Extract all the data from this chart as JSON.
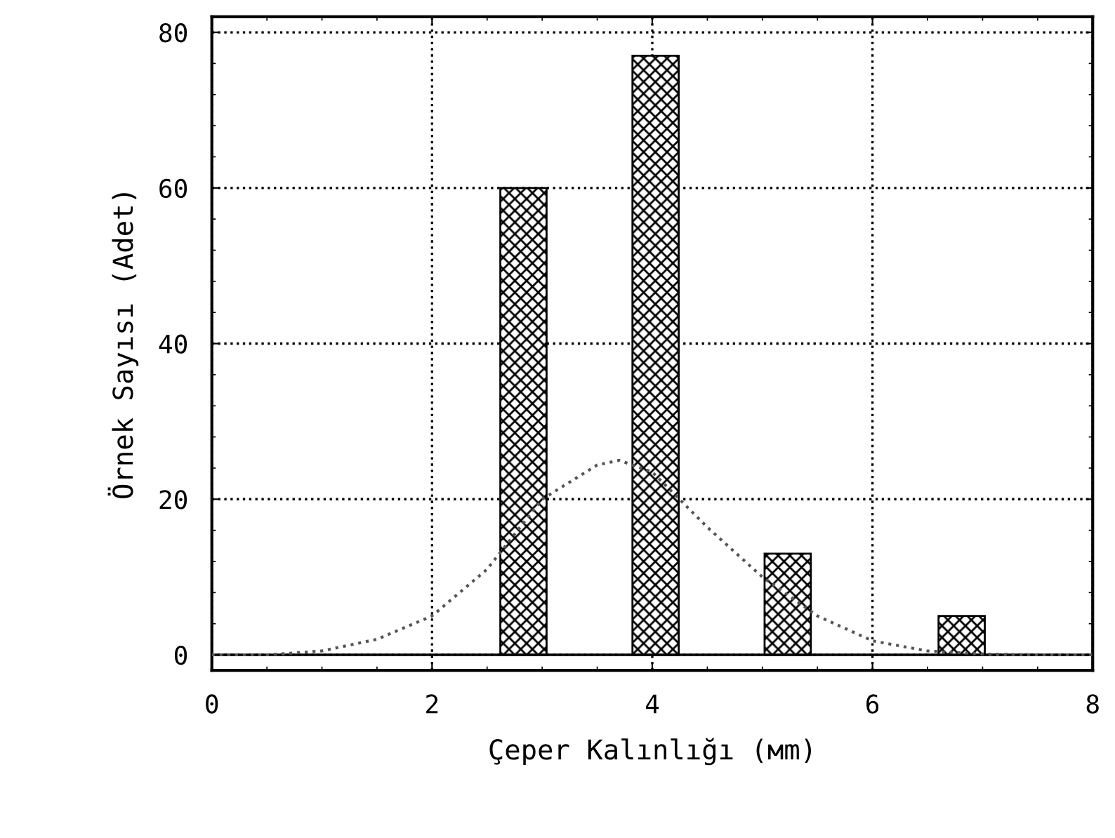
{
  "chart_data": {
    "type": "bar",
    "xlabel": "Çeper Kalınlığı (мm)",
    "ylabel": "Örnek Sayısı (Adet)",
    "xlim": [
      0,
      8
    ],
    "xticks": [
      0,
      2,
      4,
      6,
      8
    ],
    "ylim": [
      -2,
      82
    ],
    "yticks": [
      0,
      20,
      40,
      60,
      80
    ],
    "grid": true,
    "series": [
      {
        "x": [
          2.83,
          4.03,
          5.23,
          6.81
        ],
        "values": [
          60,
          77,
          13,
          5
        ],
        "color": "#000000"
      },
      {
        "type": "line",
        "x": [
          0,
          0.5,
          1,
          1.5,
          2,
          2.5,
          3,
          3.5,
          3.7,
          4,
          4.5,
          5,
          5.5,
          6,
          6.5,
          7,
          7.5,
          8
        ],
        "values": [
          0,
          0,
          0.5,
          2,
          5,
          11,
          20,
          24.4,
          25,
          23.5,
          16.4,
          10,
          5,
          1.8,
          0.5,
          0.1,
          0,
          0
        ],
        "color": "#555555",
        "line_style": "dotted"
      }
    ]
  }
}
